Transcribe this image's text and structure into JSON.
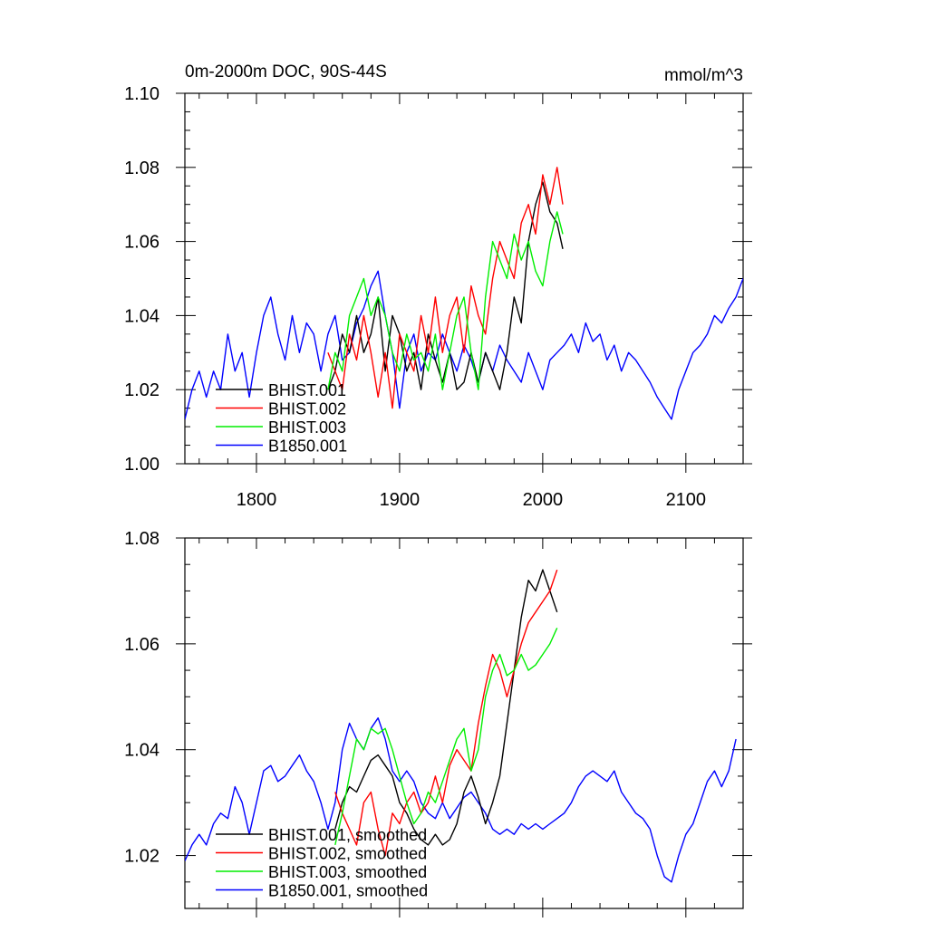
{
  "chart_data": [
    {
      "type": "line",
      "title": "0m-2000m DOC, 90S-44S",
      "units": "mmol/m^3",
      "xlabel": "",
      "ylabel": "",
      "xlim": [
        1750,
        2140
      ],
      "ylim": [
        1.0,
        1.1
      ],
      "xticks": [
        {
          "value": 1800,
          "label": "1800"
        },
        {
          "value": 1900,
          "label": "1900"
        },
        {
          "value": 2000,
          "label": "2000"
        },
        {
          "value": 2100,
          "label": "2100"
        }
      ],
      "yticks": [
        {
          "value": 1.0,
          "label": "1.00"
        },
        {
          "value": 1.02,
          "label": "1.02"
        },
        {
          "value": 1.04,
          "label": "1.04"
        },
        {
          "value": 1.06,
          "label": "1.06"
        },
        {
          "value": 1.08,
          "label": "1.08"
        },
        {
          "value": 1.1,
          "label": "1.10"
        }
      ],
      "grid": false,
      "legend_position": "bottom-left",
      "series": [
        {
          "name": "BHIST.001",
          "color": "#000000",
          "x": [
            1850,
            1855,
            1860,
            1865,
            1870,
            1875,
            1880,
            1885,
            1890,
            1895,
            1900,
            1905,
            1910,
            1915,
            1920,
            1925,
            1930,
            1935,
            1940,
            1945,
            1950,
            1955,
            1960,
            1965,
            1970,
            1975,
            1980,
            1985,
            1990,
            1995,
            2000,
            2005,
            2010,
            2014
          ],
          "y": [
            1.02,
            1.025,
            1.035,
            1.03,
            1.04,
            1.03,
            1.035,
            1.045,
            1.025,
            1.04,
            1.035,
            1.025,
            1.03,
            1.02,
            1.035,
            1.028,
            1.022,
            1.03,
            1.02,
            1.022,
            1.03,
            1.022,
            1.03,
            1.025,
            1.02,
            1.03,
            1.045,
            1.038,
            1.06,
            1.07,
            1.076,
            1.068,
            1.065,
            1.058
          ]
        },
        {
          "name": "BHIST.002",
          "color": "#ff0000",
          "x": [
            1850,
            1855,
            1860,
            1865,
            1870,
            1875,
            1880,
            1885,
            1890,
            1895,
            1900,
            1905,
            1910,
            1915,
            1920,
            1925,
            1930,
            1935,
            1940,
            1945,
            1950,
            1955,
            1960,
            1965,
            1970,
            1975,
            1980,
            1985,
            1990,
            1995,
            2000,
            2005,
            2010,
            2014
          ],
          "y": [
            1.03,
            1.025,
            1.02,
            1.035,
            1.028,
            1.04,
            1.03,
            1.018,
            1.03,
            1.015,
            1.035,
            1.03,
            1.025,
            1.04,
            1.03,
            1.045,
            1.03,
            1.04,
            1.045,
            1.03,
            1.048,
            1.04,
            1.035,
            1.05,
            1.06,
            1.055,
            1.05,
            1.065,
            1.07,
            1.062,
            1.078,
            1.07,
            1.08,
            1.07
          ]
        },
        {
          "name": "BHIST.003",
          "color": "#00ee00",
          "x": [
            1850,
            1855,
            1860,
            1865,
            1870,
            1875,
            1880,
            1885,
            1890,
            1895,
            1900,
            1905,
            1910,
            1915,
            1920,
            1925,
            1930,
            1935,
            1940,
            1945,
            1950,
            1955,
            1960,
            1965,
            1970,
            1975,
            1980,
            1985,
            1990,
            1995,
            2000,
            2005,
            2010,
            2014
          ],
          "y": [
            1.02,
            1.03,
            1.025,
            1.04,
            1.045,
            1.05,
            1.04,
            1.045,
            1.04,
            1.03,
            1.025,
            1.035,
            1.028,
            1.03,
            1.025,
            1.035,
            1.02,
            1.03,
            1.04,
            1.045,
            1.03,
            1.02,
            1.045,
            1.06,
            1.055,
            1.05,
            1.062,
            1.055,
            1.06,
            1.052,
            1.048,
            1.06,
            1.068,
            1.062
          ]
        },
        {
          "name": "B1850.001",
          "color": "#0000ff",
          "x": [
            1750,
            1755,
            1760,
            1765,
            1770,
            1775,
            1780,
            1785,
            1790,
            1795,
            1800,
            1805,
            1810,
            1815,
            1820,
            1825,
            1830,
            1835,
            1840,
            1845,
            1850,
            1855,
            1860,
            1865,
            1870,
            1875,
            1880,
            1885,
            1890,
            1895,
            1900,
            1905,
            1910,
            1915,
            1920,
            1925,
            1930,
            1935,
            1940,
            1945,
            1950,
            1955,
            1960,
            1965,
            1970,
            1975,
            1980,
            1985,
            1990,
            1995,
            2000,
            2005,
            2010,
            2015,
            2020,
            2025,
            2030,
            2035,
            2040,
            2045,
            2050,
            2055,
            2060,
            2065,
            2070,
            2075,
            2080,
            2085,
            2090,
            2095,
            2100,
            2105,
            2110,
            2115,
            2120,
            2125,
            2130,
            2135,
            2140
          ],
          "y": [
            1.012,
            1.02,
            1.025,
            1.018,
            1.025,
            1.02,
            1.035,
            1.025,
            1.03,
            1.018,
            1.03,
            1.04,
            1.045,
            1.035,
            1.028,
            1.04,
            1.03,
            1.038,
            1.035,
            1.025,
            1.035,
            1.04,
            1.028,
            1.03,
            1.038,
            1.042,
            1.048,
            1.052,
            1.04,
            1.03,
            1.015,
            1.03,
            1.035,
            1.025,
            1.03,
            1.028,
            1.035,
            1.03,
            1.025,
            1.032,
            1.028,
            1.022,
            1.03,
            1.025,
            1.032,
            1.028,
            1.025,
            1.022,
            1.03,
            1.025,
            1.02,
            1.028,
            1.03,
            1.032,
            1.035,
            1.03,
            1.038,
            1.033,
            1.035,
            1.028,
            1.032,
            1.025,
            1.03,
            1.028,
            1.025,
            1.022,
            1.018,
            1.015,
            1.012,
            1.02,
            1.025,
            1.03,
            1.032,
            1.035,
            1.04,
            1.038,
            1.042,
            1.045,
            1.05
          ]
        }
      ]
    },
    {
      "type": "line",
      "title": "",
      "xlabel": "",
      "ylabel": "",
      "xlim": [
        1750,
        2140
      ],
      "ylim": [
        1.01,
        1.08
      ],
      "xticks": [
        {
          "value": 1800,
          "label": ""
        },
        {
          "value": 1900,
          "label": ""
        },
        {
          "value": 2000,
          "label": ""
        },
        {
          "value": 2100,
          "label": ""
        }
      ],
      "yticks": [
        {
          "value": 1.02,
          "label": "1.02"
        },
        {
          "value": 1.04,
          "label": "1.04"
        },
        {
          "value": 1.06,
          "label": "1.06"
        },
        {
          "value": 1.08,
          "label": "1.08"
        }
      ],
      "grid": false,
      "legend_position": "bottom-left",
      "series": [
        {
          "name": "BHIST.001, smoothed",
          "color": "#000000",
          "x": [
            1855,
            1860,
            1865,
            1870,
            1875,
            1880,
            1885,
            1890,
            1895,
            1900,
            1905,
            1910,
            1915,
            1920,
            1925,
            1930,
            1935,
            1940,
            1945,
            1950,
            1955,
            1960,
            1965,
            1970,
            1975,
            1980,
            1985,
            1990,
            1995,
            2000,
            2005,
            2010
          ],
          "y": [
            1.025,
            1.03,
            1.033,
            1.032,
            1.035,
            1.038,
            1.039,
            1.037,
            1.035,
            1.03,
            1.028,
            1.025,
            1.023,
            1.022,
            1.024,
            1.022,
            1.023,
            1.026,
            1.032,
            1.035,
            1.031,
            1.026,
            1.03,
            1.035,
            1.045,
            1.055,
            1.065,
            1.072,
            1.07,
            1.074,
            1.07,
            1.066
          ]
        },
        {
          "name": "BHIST.002, smoothed",
          "color": "#ff0000",
          "x": [
            1855,
            1860,
            1865,
            1870,
            1875,
            1880,
            1885,
            1890,
            1895,
            1900,
            1905,
            1910,
            1915,
            1920,
            1925,
            1930,
            1935,
            1940,
            1945,
            1950,
            1955,
            1960,
            1965,
            1970,
            1975,
            1980,
            1985,
            1990,
            1995,
            2000,
            2005,
            2010
          ],
          "y": [
            1.032,
            1.028,
            1.025,
            1.022,
            1.03,
            1.032,
            1.025,
            1.02,
            1.028,
            1.026,
            1.03,
            1.032,
            1.028,
            1.03,
            1.035,
            1.03,
            1.037,
            1.04,
            1.038,
            1.036,
            1.045,
            1.052,
            1.058,
            1.055,
            1.05,
            1.055,
            1.06,
            1.064,
            1.066,
            1.068,
            1.07,
            1.074
          ]
        },
        {
          "name": "BHIST.003, smoothed",
          "color": "#00ee00",
          "x": [
            1855,
            1860,
            1865,
            1870,
            1875,
            1880,
            1885,
            1890,
            1895,
            1900,
            1905,
            1910,
            1915,
            1920,
            1925,
            1930,
            1935,
            1940,
            1945,
            1950,
            1955,
            1960,
            1965,
            1970,
            1975,
            1980,
            1985,
            1990,
            1995,
            2000,
            2005,
            2010
          ],
          "y": [
            1.022,
            1.028,
            1.035,
            1.042,
            1.04,
            1.044,
            1.043,
            1.044,
            1.04,
            1.035,
            1.03,
            1.026,
            1.028,
            1.032,
            1.03,
            1.034,
            1.038,
            1.042,
            1.044,
            1.036,
            1.04,
            1.05,
            1.055,
            1.058,
            1.054,
            1.055,
            1.058,
            1.055,
            1.056,
            1.058,
            1.06,
            1.063
          ]
        },
        {
          "name": "B1850.001, smoothed",
          "color": "#0000ff",
          "x": [
            1750,
            1755,
            1760,
            1765,
            1770,
            1775,
            1780,
            1785,
            1790,
            1795,
            1800,
            1805,
            1810,
            1815,
            1820,
            1825,
            1830,
            1835,
            1840,
            1845,
            1850,
            1855,
            1860,
            1865,
            1870,
            1875,
            1880,
            1885,
            1890,
            1895,
            1900,
            1905,
            1910,
            1915,
            1920,
            1925,
            1930,
            1935,
            1940,
            1945,
            1950,
            1955,
            1960,
            1965,
            1970,
            1975,
            1980,
            1985,
            1990,
            1995,
            2000,
            2005,
            2010,
            2015,
            2020,
            2025,
            2030,
            2035,
            2040,
            2045,
            2050,
            2055,
            2060,
            2065,
            2070,
            2075,
            2080,
            2085,
            2090,
            2095,
            2100,
            2105,
            2110,
            2115,
            2120,
            2125,
            2130,
            2135
          ],
          "y": [
            1.019,
            1.022,
            1.024,
            1.022,
            1.026,
            1.028,
            1.027,
            1.033,
            1.03,
            1.024,
            1.03,
            1.036,
            1.037,
            1.034,
            1.035,
            1.037,
            1.039,
            1.036,
            1.034,
            1.03,
            1.025,
            1.03,
            1.04,
            1.045,
            1.042,
            1.04,
            1.044,
            1.046,
            1.042,
            1.036,
            1.034,
            1.036,
            1.034,
            1.03,
            1.028,
            1.027,
            1.03,
            1.027,
            1.029,
            1.031,
            1.032,
            1.03,
            1.028,
            1.025,
            1.024,
            1.025,
            1.024,
            1.026,
            1.025,
            1.026,
            1.025,
            1.026,
            1.027,
            1.028,
            1.03,
            1.033,
            1.035,
            1.036,
            1.035,
            1.034,
            1.036,
            1.032,
            1.03,
            1.028,
            1.027,
            1.025,
            1.02,
            1.016,
            1.015,
            1.02,
            1.024,
            1.026,
            1.03,
            1.034,
            1.036,
            1.033,
            1.036,
            1.042
          ]
        }
      ]
    }
  ]
}
